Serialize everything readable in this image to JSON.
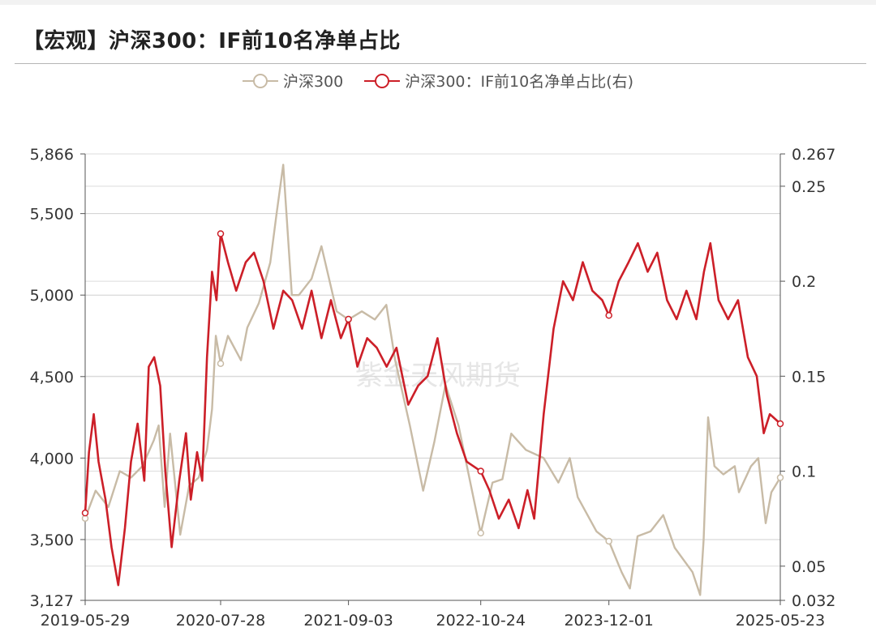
{
  "title": "【宏观】沪深300：IF前10名净单占比",
  "watermark": "紫金天风期货",
  "legend": [
    {
      "name": "沪深300",
      "color": "#c8bba6"
    },
    {
      "name": "沪深300：IF前10名净单占比(右)",
      "color": "#cc1f28"
    }
  ],
  "chart_data": {
    "type": "line",
    "title": "【宏观】沪深300：IF前10名净单占比",
    "x_ticks": [
      "2019-05-29",
      "2020-07-28",
      "2021-09-03",
      "2022-10-24",
      "2023-12-01",
      "2025-05-23"
    ],
    "x_range": [
      "2019-05-29",
      "2025-05-23"
    ],
    "y_left": {
      "min": 3127,
      "max": 5866,
      "ticks": [
        3127,
        3500,
        4000,
        4500,
        5000,
        5500,
        5866
      ],
      "tick_labels": [
        "3,127",
        "3,500",
        "4,000",
        "4,500",
        "5,000",
        "5,500",
        "5,866"
      ]
    },
    "y_right": {
      "min": 0.032,
      "max": 0.267,
      "ticks": [
        0.032,
        0.05,
        0.1,
        0.15,
        0.2,
        0.25,
        0.267
      ],
      "tick_labels": [
        "0.032",
        "0.05",
        "0.1",
        "0.15",
        "0.2",
        "0.25",
        "0.267"
      ]
    },
    "grid": true,
    "legend_position": "top-center",
    "series": [
      {
        "name": "沪深300",
        "axis": "left",
        "color": "#c8bba6",
        "points": [
          [
            "2019-05-29",
            3630
          ],
          [
            "2019-07-01",
            3800
          ],
          [
            "2019-08-10",
            3700
          ],
          [
            "2019-09-15",
            3920
          ],
          [
            "2019-10-20",
            3880
          ],
          [
            "2019-11-25",
            3950
          ],
          [
            "2019-12-31",
            4110
          ],
          [
            "2020-01-15",
            4200
          ],
          [
            "2020-02-03",
            3700
          ],
          [
            "2020-02-20",
            4150
          ],
          [
            "2020-03-23",
            3530
          ],
          [
            "2020-04-20",
            3830
          ],
          [
            "2020-05-20",
            3880
          ],
          [
            "2020-06-15",
            4050
          ],
          [
            "2020-07-01",
            4300
          ],
          [
            "2020-07-13",
            4750
          ],
          [
            "2020-07-28",
            4580
          ],
          [
            "2020-08-20",
            4750
          ],
          [
            "2020-09-30",
            4600
          ],
          [
            "2020-10-20",
            4800
          ],
          [
            "2020-11-25",
            4950
          ],
          [
            "2020-12-31",
            5200
          ],
          [
            "2021-01-20",
            5500
          ],
          [
            "2021-02-10",
            5800
          ],
          [
            "2021-03-09",
            5000
          ],
          [
            "2021-03-31",
            5000
          ],
          [
            "2021-05-10",
            5100
          ],
          [
            "2021-06-10",
            5300
          ],
          [
            "2021-07-28",
            4900
          ],
          [
            "2021-09-03",
            4850
          ],
          [
            "2021-10-15",
            4900
          ],
          [
            "2021-11-25",
            4850
          ],
          [
            "2021-12-31",
            4940
          ],
          [
            "2022-01-28",
            4600
          ],
          [
            "2022-03-15",
            4200
          ],
          [
            "2022-04-26",
            3800
          ],
          [
            "2022-05-31",
            4100
          ],
          [
            "2022-07-05",
            4450
          ],
          [
            "2022-08-15",
            4200
          ],
          [
            "2022-10-24",
            3540
          ],
          [
            "2022-11-30",
            3850
          ],
          [
            "2022-12-31",
            3870
          ],
          [
            "2023-01-28",
            4150
          ],
          [
            "2023-03-15",
            4050
          ],
          [
            "2023-05-10",
            4000
          ],
          [
            "2023-06-25",
            3850
          ],
          [
            "2023-07-31",
            4000
          ],
          [
            "2023-08-25",
            3760
          ],
          [
            "2023-10-23",
            3550
          ],
          [
            "2023-12-01",
            3490
          ],
          [
            "2024-01-10",
            3300
          ],
          [
            "2024-02-05",
            3200
          ],
          [
            "2024-02-29",
            3520
          ],
          [
            "2024-04-10",
            3550
          ],
          [
            "2024-05-20",
            3650
          ],
          [
            "2024-06-25",
            3450
          ],
          [
            "2024-08-20",
            3300
          ],
          [
            "2024-09-13",
            3160
          ],
          [
            "2024-09-24",
            3500
          ],
          [
            "2024-10-08",
            4250
          ],
          [
            "2024-10-28",
            3950
          ],
          [
            "2024-11-25",
            3900
          ],
          [
            "2024-12-31",
            3950
          ],
          [
            "2025-01-13",
            3790
          ],
          [
            "2025-02-20",
            3950
          ],
          [
            "2025-03-15",
            4000
          ],
          [
            "2025-04-07",
            3600
          ],
          [
            "2025-04-25",
            3790
          ],
          [
            "2025-05-23",
            3880
          ]
        ]
      },
      {
        "name": "沪深300：IF前10名净单占比(右)",
        "axis": "right",
        "color": "#cc1f28",
        "points": [
          [
            "2019-05-29",
            0.078
          ],
          [
            "2019-06-10",
            0.11
          ],
          [
            "2019-06-25",
            0.13
          ],
          [
            "2019-07-10",
            0.105
          ],
          [
            "2019-08-01",
            0.085
          ],
          [
            "2019-08-20",
            0.06
          ],
          [
            "2019-09-10",
            0.04
          ],
          [
            "2019-10-01",
            0.07
          ],
          [
            "2019-10-20",
            0.105
          ],
          [
            "2019-11-10",
            0.125
          ],
          [
            "2019-12-01",
            0.095
          ],
          [
            "2019-12-15",
            0.155
          ],
          [
            "2020-01-01",
            0.16
          ],
          [
            "2020-01-20",
            0.145
          ],
          [
            "2020-02-05",
            0.1
          ],
          [
            "2020-02-25",
            0.06
          ],
          [
            "2020-03-20",
            0.095
          ],
          [
            "2020-04-10",
            0.12
          ],
          [
            "2020-04-25",
            0.085
          ],
          [
            "2020-05-15",
            0.11
          ],
          [
            "2020-05-31",
            0.095
          ],
          [
            "2020-06-15",
            0.16
          ],
          [
            "2020-07-01",
            0.205
          ],
          [
            "2020-07-15",
            0.19
          ],
          [
            "2020-07-28",
            0.225
          ],
          [
            "2020-08-20",
            0.21
          ],
          [
            "2020-09-15",
            0.195
          ],
          [
            "2020-10-15",
            0.21
          ],
          [
            "2020-11-10",
            0.215
          ],
          [
            "2020-12-10",
            0.2
          ],
          [
            "2021-01-10",
            0.175
          ],
          [
            "2021-02-10",
            0.195
          ],
          [
            "2021-03-10",
            0.19
          ],
          [
            "2021-04-10",
            0.175
          ],
          [
            "2021-05-10",
            0.195
          ],
          [
            "2021-06-10",
            0.17
          ],
          [
            "2021-07-10",
            0.19
          ],
          [
            "2021-08-10",
            0.17
          ],
          [
            "2021-09-03",
            0.18
          ],
          [
            "2021-10-01",
            0.155
          ],
          [
            "2021-11-01",
            0.17
          ],
          [
            "2021-12-01",
            0.165
          ],
          [
            "2022-01-01",
            0.155
          ],
          [
            "2022-02-01",
            0.165
          ],
          [
            "2022-03-10",
            0.135
          ],
          [
            "2022-04-10",
            0.145
          ],
          [
            "2022-05-10",
            0.15
          ],
          [
            "2022-06-10",
            0.17
          ],
          [
            "2022-07-10",
            0.14
          ],
          [
            "2022-08-10",
            0.12
          ],
          [
            "2022-09-10",
            0.105
          ],
          [
            "2022-10-24",
            0.1
          ],
          [
            "2022-11-20",
            0.09
          ],
          [
            "2022-12-20",
            0.075
          ],
          [
            "2023-01-20",
            0.085
          ],
          [
            "2023-02-20",
            0.07
          ],
          [
            "2023-03-20",
            0.09
          ],
          [
            "2023-04-10",
            0.075
          ],
          [
            "2023-05-10",
            0.13
          ],
          [
            "2023-06-10",
            0.175
          ],
          [
            "2023-07-10",
            0.2
          ],
          [
            "2023-08-10",
            0.19
          ],
          [
            "2023-09-10",
            0.21
          ],
          [
            "2023-10-10",
            0.195
          ],
          [
            "2023-11-10",
            0.19
          ],
          [
            "2023-12-01",
            0.182
          ],
          [
            "2024-01-01",
            0.2
          ],
          [
            "2024-02-01",
            0.21
          ],
          [
            "2024-03-01",
            0.22
          ],
          [
            "2024-04-01",
            0.205
          ],
          [
            "2024-05-01",
            0.215
          ],
          [
            "2024-06-01",
            0.19
          ],
          [
            "2024-07-01",
            0.18
          ],
          [
            "2024-08-01",
            0.195
          ],
          [
            "2024-09-01",
            0.18
          ],
          [
            "2024-09-25",
            0.205
          ],
          [
            "2024-10-15",
            0.22
          ],
          [
            "2024-11-10",
            0.19
          ],
          [
            "2024-12-10",
            0.18
          ],
          [
            "2025-01-10",
            0.19
          ],
          [
            "2025-02-10",
            0.16
          ],
          [
            "2025-03-10",
            0.15
          ],
          [
            "2025-04-01",
            0.12
          ],
          [
            "2025-04-20",
            0.13
          ],
          [
            "2025-05-23",
            0.125
          ]
        ]
      }
    ]
  }
}
